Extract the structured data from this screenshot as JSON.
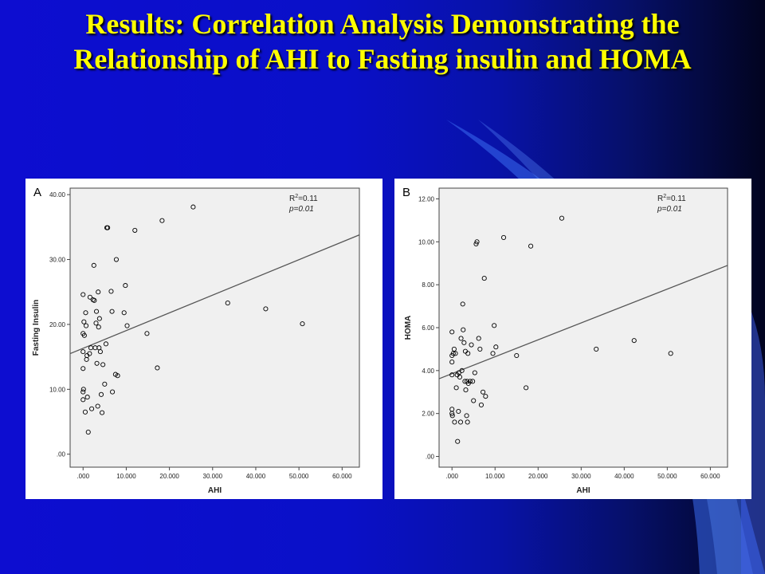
{
  "title": "Results:  Correlation Analysis Demonstrating the Relationship of AHI to Fasting insulin and HOMA",
  "colors": {
    "title": "#ffff00",
    "background": "#0a10c8",
    "panel": "#ffffff",
    "plot_area": "#f0f0f0",
    "marker": "#000000",
    "fit_line": "#555555"
  },
  "chart_data": [
    {
      "type": "scatter",
      "panel_label": "A",
      "xlabel": "AHI",
      "ylabel": "Fasting Insulin",
      "xlim": [
        -3,
        64
      ],
      "ylim": [
        -2,
        41
      ],
      "xticks": [
        0,
        10,
        20,
        30,
        40,
        50,
        60
      ],
      "xtick_labels": [
        ".000",
        "10.000",
        "20.000",
        "30.000",
        "40.000",
        "50.000",
        "60.000"
      ],
      "yticks": [
        0,
        10,
        20,
        30,
        40
      ],
      "ytick_labels": [
        ".00",
        "10.00",
        "20.00",
        "30.00",
        "40.00"
      ],
      "annotation": {
        "r2": "=0.11",
        "p": "p=0.01"
      },
      "fit_line": {
        "x": [
          -3,
          64
        ],
        "y": [
          15.5,
          33.8
        ]
      },
      "grid": false,
      "points": [
        {
          "x": 0.0,
          "y": 24.6
        },
        {
          "x": 0.0,
          "y": 18.6
        },
        {
          "x": 0.0,
          "y": 15.8
        },
        {
          "x": 0.0,
          "y": 13.2
        },
        {
          "x": 0.0,
          "y": 9.6
        },
        {
          "x": 0.0,
          "y": 8.4
        },
        {
          "x": 0.1,
          "y": 10.0
        },
        {
          "x": 0.2,
          "y": 20.4
        },
        {
          "x": 0.3,
          "y": 18.3
        },
        {
          "x": 0.5,
          "y": 6.5
        },
        {
          "x": 0.6,
          "y": 21.8
        },
        {
          "x": 0.7,
          "y": 19.8
        },
        {
          "x": 0.8,
          "y": 14.6
        },
        {
          "x": 0.9,
          "y": 15.2
        },
        {
          "x": 1.0,
          "y": 8.8
        },
        {
          "x": 1.2,
          "y": 3.4
        },
        {
          "x": 1.5,
          "y": 15.5
        },
        {
          "x": 1.6,
          "y": 24.2
        },
        {
          "x": 1.8,
          "y": 16.4
        },
        {
          "x": 2.0,
          "y": 7.0
        },
        {
          "x": 2.3,
          "y": 23.8
        },
        {
          "x": 2.5,
          "y": 29.1
        },
        {
          "x": 2.6,
          "y": 23.7
        },
        {
          "x": 2.8,
          "y": 16.4
        },
        {
          "x": 3.0,
          "y": 20.2
        },
        {
          "x": 3.1,
          "y": 22.0
        },
        {
          "x": 3.2,
          "y": 14.0
        },
        {
          "x": 3.4,
          "y": 7.4
        },
        {
          "x": 3.5,
          "y": 25.0
        },
        {
          "x": 3.6,
          "y": 19.6
        },
        {
          "x": 3.7,
          "y": 16.4
        },
        {
          "x": 3.8,
          "y": 20.9
        },
        {
          "x": 4.0,
          "y": 15.8
        },
        {
          "x": 4.2,
          "y": 9.2
        },
        {
          "x": 4.4,
          "y": 6.4
        },
        {
          "x": 4.6,
          "y": 13.8
        },
        {
          "x": 5.0,
          "y": 10.8
        },
        {
          "x": 5.3,
          "y": 17.0
        },
        {
          "x": 5.5,
          "y": 34.9
        },
        {
          "x": 5.7,
          "y": 34.9
        },
        {
          "x": 6.5,
          "y": 25.1
        },
        {
          "x": 6.7,
          "y": 22.0
        },
        {
          "x": 6.8,
          "y": 9.6
        },
        {
          "x": 7.5,
          "y": 12.3
        },
        {
          "x": 7.7,
          "y": 30.0
        },
        {
          "x": 8.0,
          "y": 12.1
        },
        {
          "x": 9.5,
          "y": 21.8
        },
        {
          "x": 9.8,
          "y": 26.0
        },
        {
          "x": 10.2,
          "y": 19.8
        },
        {
          "x": 12.0,
          "y": 34.5
        },
        {
          "x": 14.8,
          "y": 18.6
        },
        {
          "x": 17.2,
          "y": 13.3
        },
        {
          "x": 18.3,
          "y": 36.0
        },
        {
          "x": 25.5,
          "y": 38.1
        },
        {
          "x": 33.5,
          "y": 23.3
        },
        {
          "x": 42.3,
          "y": 22.4
        },
        {
          "x": 50.8,
          "y": 20.1
        }
      ]
    },
    {
      "type": "scatter",
      "panel_label": "B",
      "xlabel": "AHI",
      "ylabel": "HOMA",
      "xlim": [
        -3,
        64
      ],
      "ylim": [
        -0.5,
        12.5
      ],
      "xticks": [
        0,
        10,
        20,
        30,
        40,
        50,
        60
      ],
      "xtick_labels": [
        ".000",
        "10.000",
        "20.000",
        "30.000",
        "40.000",
        "50.000",
        "60.000"
      ],
      "yticks": [
        0,
        2,
        4,
        6,
        8,
        10,
        12
      ],
      "ytick_labels": [
        ".00",
        "2.00",
        "4.00",
        "6.00",
        "8.00",
        "10.00",
        "12.00"
      ],
      "annotation": {
        "r2": "=0.11",
        "p": "p=0.01"
      },
      "fit_line": {
        "x": [
          -3,
          64
        ],
        "y": [
          3.62,
          8.9
        ]
      },
      "grid": false,
      "points": [
        {
          "x": 0.0,
          "y": 5.8
        },
        {
          "x": 0.0,
          "y": 4.7
        },
        {
          "x": 0.0,
          "y": 4.4
        },
        {
          "x": 0.0,
          "y": 3.8
        },
        {
          "x": 0.0,
          "y": 2.2
        },
        {
          "x": 0.0,
          "y": 2.0
        },
        {
          "x": 0.1,
          "y": 1.9
        },
        {
          "x": 0.3,
          "y": 4.8
        },
        {
          "x": 0.5,
          "y": 5.0
        },
        {
          "x": 0.6,
          "y": 1.6
        },
        {
          "x": 0.8,
          "y": 4.8
        },
        {
          "x": 1.0,
          "y": 3.2
        },
        {
          "x": 1.2,
          "y": 3.8
        },
        {
          "x": 1.3,
          "y": 0.7
        },
        {
          "x": 1.5,
          "y": 2.1
        },
        {
          "x": 1.6,
          "y": 3.9
        },
        {
          "x": 1.8,
          "y": 3.7
        },
        {
          "x": 2.0,
          "y": 1.6
        },
        {
          "x": 2.1,
          "y": 5.5
        },
        {
          "x": 2.3,
          "y": 4.0
        },
        {
          "x": 2.5,
          "y": 7.1
        },
        {
          "x": 2.6,
          "y": 5.9
        },
        {
          "x": 2.8,
          "y": 5.3
        },
        {
          "x": 3.0,
          "y": 3.5
        },
        {
          "x": 3.1,
          "y": 4.9
        },
        {
          "x": 3.2,
          "y": 3.1
        },
        {
          "x": 3.4,
          "y": 1.9
        },
        {
          "x": 3.5,
          "y": 3.5
        },
        {
          "x": 3.6,
          "y": 1.6
        },
        {
          "x": 3.7,
          "y": 4.8
        },
        {
          "x": 3.8,
          "y": 3.4
        },
        {
          "x": 4.2,
          "y": 3.5
        },
        {
          "x": 4.5,
          "y": 5.2
        },
        {
          "x": 4.8,
          "y": 3.5
        },
        {
          "x": 5.0,
          "y": 2.6
        },
        {
          "x": 5.3,
          "y": 3.9
        },
        {
          "x": 5.6,
          "y": 9.9
        },
        {
          "x": 5.8,
          "y": 10.0
        },
        {
          "x": 6.2,
          "y": 5.5
        },
        {
          "x": 6.5,
          "y": 5.0
        },
        {
          "x": 6.8,
          "y": 2.4
        },
        {
          "x": 7.2,
          "y": 3.0
        },
        {
          "x": 7.5,
          "y": 8.3
        },
        {
          "x": 7.8,
          "y": 2.8
        },
        {
          "x": 9.5,
          "y": 4.8
        },
        {
          "x": 9.8,
          "y": 6.1
        },
        {
          "x": 10.2,
          "y": 5.1
        },
        {
          "x": 12.0,
          "y": 10.2
        },
        {
          "x": 15.0,
          "y": 4.7
        },
        {
          "x": 17.2,
          "y": 3.2
        },
        {
          "x": 18.3,
          "y": 9.8
        },
        {
          "x": 25.5,
          "y": 11.1
        },
        {
          "x": 33.5,
          "y": 5.0
        },
        {
          "x": 42.3,
          "y": 5.4
        },
        {
          "x": 50.8,
          "y": 4.8
        }
      ]
    }
  ]
}
